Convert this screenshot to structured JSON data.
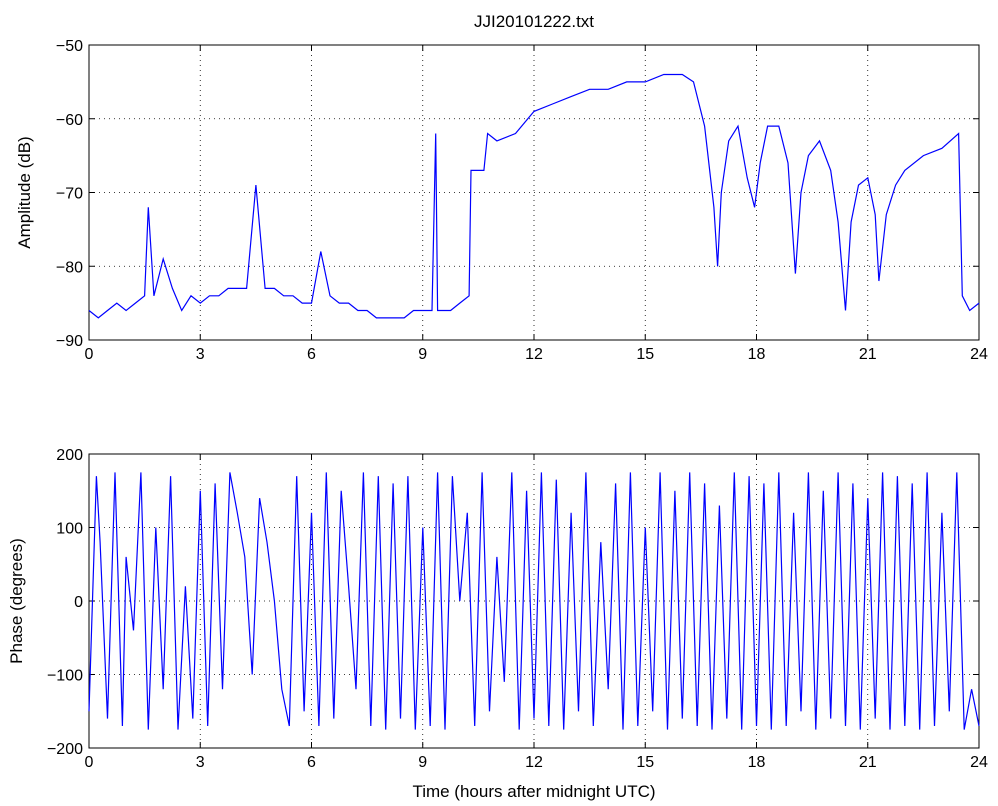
{
  "chart_data": [
    {
      "type": "line",
      "title": "JJI20101222.txt",
      "xlabel": "",
      "ylabel": "Amplitude (dB)",
      "xlim": [
        0,
        24
      ],
      "ylim": [
        -90,
        -50
      ],
      "xticks": [
        "0",
        "3",
        "6",
        "9",
        "12",
        "15",
        "18",
        "21",
        "24"
      ],
      "yticks": [
        "-50",
        "-60",
        "-70",
        "-80",
        "-90"
      ],
      "grid": true,
      "line_color": "#0000ff",
      "series": [
        {
          "x": [
            0,
            0.25,
            0.5,
            0.75,
            1.0,
            1.25,
            1.5,
            1.6,
            1.75,
            2.0,
            2.25,
            2.5,
            2.75,
            3.0,
            3.25,
            3.5,
            3.75,
            4.0,
            4.25,
            4.5,
            4.75,
            5.0,
            5.25,
            5.5,
            5.75,
            6.0,
            6.25,
            6.5,
            6.75,
            7.0,
            7.25,
            7.5,
            7.75,
            8.0,
            8.25,
            8.5,
            8.75,
            9.0,
            9.25,
            9.35,
            9.4,
            9.5,
            9.75,
            10.0,
            10.25,
            10.3,
            10.5,
            10.65,
            10.75,
            11.0,
            11.5,
            12.0,
            12.5,
            13.0,
            13.5,
            14.0,
            14.5,
            15.0,
            15.5,
            16.0,
            16.3,
            16.6,
            16.85,
            16.95,
            17.05,
            17.25,
            17.5,
            17.75,
            17.95,
            18.1,
            18.3,
            18.6,
            18.85,
            19.05,
            19.2,
            19.4,
            19.7,
            20.0,
            20.2,
            20.4,
            20.55,
            20.75,
            21.0,
            21.2,
            21.3,
            21.5,
            21.75,
            22.0,
            22.5,
            23.0,
            23.45,
            23.55,
            23.75,
            24.0
          ],
          "values": [
            -86,
            -87,
            -86,
            -85,
            -86,
            -85,
            -84,
            -72,
            -84,
            -79,
            -83,
            -86,
            -84,
            -85,
            -84,
            -84,
            -83,
            -83,
            -83,
            -69,
            -83,
            -83,
            -84,
            -84,
            -85,
            -85,
            -78,
            -84,
            -85,
            -85,
            -86,
            -86,
            -87,
            -87,
            -87,
            -87,
            -86,
            -86,
            -86,
            -62,
            -86,
            -86,
            -86,
            -85,
            -84,
            -67,
            -67,
            -67,
            -62,
            -63,
            -62,
            -59,
            -58,
            -57,
            -56,
            -56,
            -55,
            -55,
            -54,
            -54,
            -55,
            -61,
            -72,
            -80,
            -70,
            -63,
            -61,
            -68,
            -72,
            -66,
            -61,
            -61,
            -66,
            -81,
            -70,
            -65,
            -63,
            -67,
            -74,
            -86,
            -74,
            -69,
            -68,
            -73,
            -82,
            -73,
            -69,
            -67,
            -65,
            -64,
            -62,
            -84,
            -86,
            -85
          ]
        }
      ]
    },
    {
      "type": "line",
      "title": "",
      "xlabel": "Time (hours after midnight UTC)",
      "ylabel": "Phase (degrees)",
      "xlim": [
        0,
        24
      ],
      "ylim": [
        -200,
        200
      ],
      "xticks": [
        "0",
        "3",
        "6",
        "9",
        "12",
        "15",
        "18",
        "21",
        "24"
      ],
      "yticks": [
        "200",
        "100",
        "0",
        "-100",
        "-200"
      ],
      "grid": true,
      "line_color": "#0000ff",
      "series": [
        {
          "x": [
            0,
            0.2,
            0.3,
            0.5,
            0.7,
            0.9,
            1.0,
            1.2,
            1.4,
            1.6,
            1.8,
            2.0,
            2.2,
            2.4,
            2.6,
            2.8,
            3.0,
            3.2,
            3.4,
            3.6,
            3.8,
            4.0,
            4.2,
            4.4,
            4.6,
            4.8,
            5.0,
            5.2,
            5.4,
            5.6,
            5.8,
            6.0,
            6.2,
            6.4,
            6.6,
            6.8,
            7.0,
            7.2,
            7.4,
            7.6,
            7.8,
            8.0,
            8.2,
            8.4,
            8.6,
            8.8,
            9.0,
            9.2,
            9.4,
            9.6,
            9.8,
            10.0,
            10.2,
            10.4,
            10.6,
            10.8,
            11.0,
            11.2,
            11.4,
            11.6,
            11.8,
            12.0,
            12.2,
            12.4,
            12.6,
            12.8,
            13.0,
            13.2,
            13.4,
            13.6,
            13.8,
            14.0,
            14.2,
            14.4,
            14.6,
            14.8,
            15.0,
            15.2,
            15.4,
            15.6,
            15.8,
            16.0,
            16.2,
            16.4,
            16.6,
            16.8,
            17.0,
            17.2,
            17.4,
            17.6,
            17.8,
            18.0,
            18.2,
            18.4,
            18.6,
            18.8,
            19.0,
            19.2,
            19.4,
            19.6,
            19.8,
            20.0,
            20.2,
            20.4,
            20.6,
            20.8,
            21.0,
            21.2,
            21.4,
            21.6,
            21.8,
            22.0,
            22.2,
            22.4,
            22.6,
            22.8,
            23.0,
            23.2,
            23.4,
            23.6,
            23.8,
            24.0
          ],
          "values": [
            -150,
            170,
            80,
            -160,
            175,
            -170,
            60,
            -40,
            175,
            -175,
            100,
            -120,
            170,
            -175,
            20,
            -160,
            150,
            -170,
            160,
            -120,
            175,
            120,
            60,
            -100,
            140,
            80,
            0,
            -120,
            -170,
            170,
            -150,
            120,
            -170,
            175,
            -160,
            150,
            20,
            -120,
            175,
            -170,
            170,
            -175,
            160,
            -160,
            170,
            -175,
            100,
            -170,
            175,
            -175,
            170,
            0,
            120,
            -170,
            175,
            -150,
            60,
            -110,
            175,
            -175,
            150,
            -160,
            175,
            -170,
            165,
            -175,
            120,
            -150,
            175,
            -170,
            80,
            -120,
            160,
            -175,
            175,
            -170,
            100,
            -150,
            175,
            -175,
            150,
            -160,
            175,
            -170,
            160,
            -175,
            130,
            -160,
            175,
            -175,
            170,
            -170,
            160,
            -175,
            175,
            -170,
            120,
            -150,
            175,
            -175,
            150,
            -160,
            175,
            -170,
            160,
            -175,
            140,
            -160,
            175,
            -175,
            170,
            -170,
            160,
            -175,
            175,
            -170,
            120,
            -150,
            175,
            -175,
            -120,
            -170
          ]
        }
      ]
    }
  ]
}
